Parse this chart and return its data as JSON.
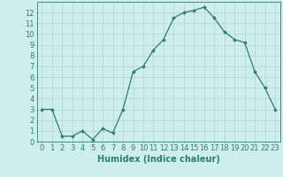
{
  "x": [
    0,
    1,
    2,
    3,
    4,
    5,
    6,
    7,
    8,
    9,
    10,
    11,
    12,
    13,
    14,
    15,
    16,
    17,
    18,
    19,
    20,
    21,
    22,
    23
  ],
  "y": [
    3,
    3,
    0.5,
    0.5,
    1,
    0.2,
    1.2,
    0.8,
    3,
    6.5,
    7,
    8.5,
    9.5,
    11.5,
    12,
    12.2,
    12.5,
    11.5,
    10.2,
    9.5,
    9.2,
    6.5,
    5,
    3
  ],
  "line_color": "#2e7d6e",
  "marker": "D",
  "marker_size": 2,
  "bg_color": "#ceeeed",
  "grid_color": "#b8d8d6",
  "xlabel": "Humidex (Indice chaleur)",
  "xlim": [
    -0.5,
    23.5
  ],
  "ylim": [
    0,
    13
  ],
  "yticks": [
    0,
    1,
    2,
    3,
    4,
    5,
    6,
    7,
    8,
    9,
    10,
    11,
    12
  ],
  "xticks": [
    0,
    1,
    2,
    3,
    4,
    5,
    6,
    7,
    8,
    9,
    10,
    11,
    12,
    13,
    14,
    15,
    16,
    17,
    18,
    19,
    20,
    21,
    22,
    23
  ],
  "xtick_labels": [
    "0",
    "1",
    "2",
    "3",
    "4",
    "5",
    "6",
    "7",
    "8",
    "9",
    "10",
    "11",
    "12",
    "13",
    "14",
    "15",
    "16",
    "17",
    "18",
    "19",
    "20",
    "21",
    "22",
    "23"
  ],
  "axis_color": "#2e7d6e",
  "tick_color": "#2e7d6e",
  "label_fontsize": 7,
  "tick_fontsize": 6
}
